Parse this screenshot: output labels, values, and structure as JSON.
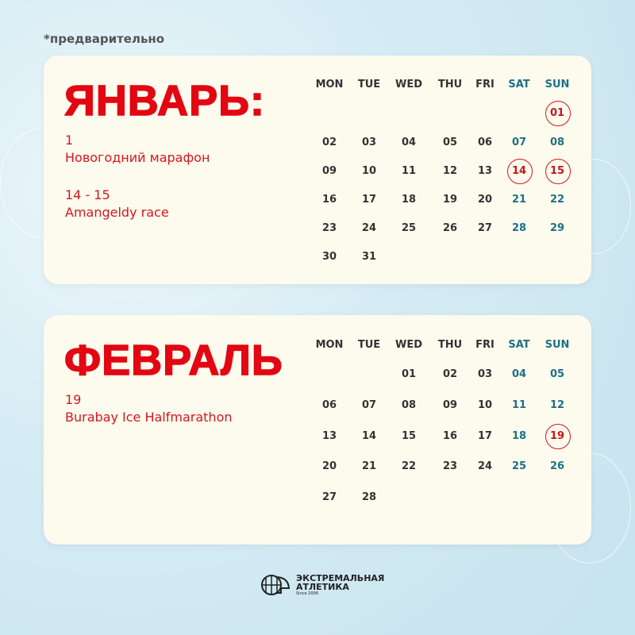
{
  "note": "*предварительно",
  "weekdays": [
    "MON",
    "TUE",
    "WED",
    "THU",
    "FRI",
    "SAT",
    "SUN"
  ],
  "colors": {
    "accent": "#e30613",
    "weekend": "#1d7184",
    "card": "#fdfaee"
  },
  "months": [
    {
      "title": "ЯНВАРЬ:",
      "events": [
        {
          "date": "1",
          "name": "Новогодний марафон"
        },
        {
          "date": "14 - 15",
          "name": "Amangeldy race"
        }
      ],
      "weeks": [
        [
          "",
          "",
          "",
          "",
          "",
          "",
          "01"
        ],
        [
          "02",
          "03",
          "04",
          "05",
          "06",
          "07",
          "08"
        ],
        [
          "09",
          "10",
          "11",
          "12",
          "13",
          "14",
          "15"
        ],
        [
          "16",
          "17",
          "18",
          "19",
          "20",
          "21",
          "22"
        ],
        [
          "23",
          "24",
          "25",
          "26",
          "27",
          "28",
          "29"
        ],
        [
          "30",
          "31",
          "",
          "",
          "",
          "",
          ""
        ]
      ],
      "marked": [
        "01",
        "14",
        "15"
      ]
    },
    {
      "title": "ФЕВРАЛЬ",
      "events": [
        {
          "date": "19",
          "name": "Burabay Ice Halfmarathon"
        }
      ],
      "weeks": [
        [
          "",
          "",
          "01",
          "02",
          "03",
          "04",
          "05"
        ],
        [
          "06",
          "07",
          "08",
          "09",
          "10",
          "11",
          "12"
        ],
        [
          "13",
          "14",
          "15",
          "16",
          "17",
          "18",
          "19"
        ],
        [
          "20",
          "21",
          "22",
          "23",
          "24",
          "25",
          "26"
        ],
        [
          "27",
          "28",
          "",
          "",
          "",
          "",
          ""
        ]
      ],
      "marked": [
        "19"
      ]
    }
  ],
  "logo": {
    "line1": "ЭКСТРЕМАЛЬНАЯ",
    "line2": "АТЛЕТИКА",
    "since": "Since 2006",
    "icon": "globe-helmet-icon"
  }
}
